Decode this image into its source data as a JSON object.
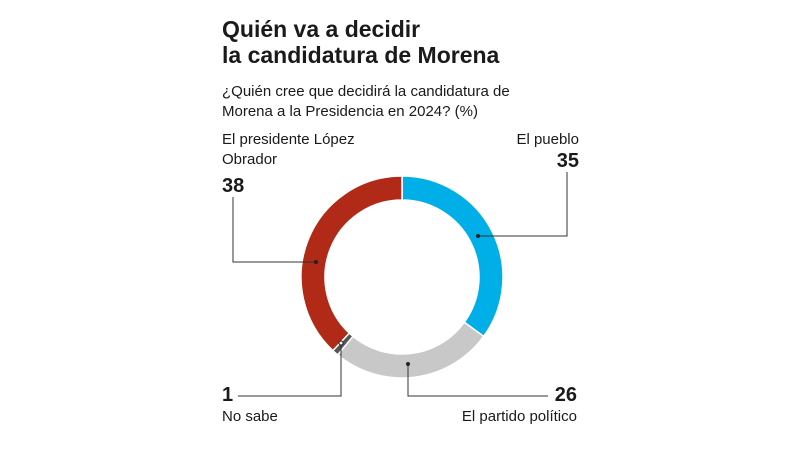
{
  "title_line1": "Quién va a decidir",
  "title_line2": "la candidatura de Morena",
  "subtitle_line1": "¿Quién cree que decidirá la candidatura de",
  "subtitle_line2": "Morena a la Presidencia en 2024? (%)",
  "chart_data": {
    "type": "pie",
    "donut": true,
    "title": "Quién va a decidir la candidatura de Morena",
    "subtitle": "¿Quién cree que decidirá la candidatura de Morena a la Presidencia en 2024? (%)",
    "unit": "%",
    "slices": [
      {
        "label": "El pueblo",
        "value": 35,
        "color": "#00aee8"
      },
      {
        "label": "El partido político",
        "value": 26,
        "color": "#c8c8c8"
      },
      {
        "label": "No sabe",
        "value": 1,
        "color": "#555555"
      },
      {
        "label": "El presidente López Obrador",
        "value": 38,
        "color": "#b02a17"
      }
    ],
    "start": "top",
    "direction": "clockwise"
  },
  "labels": {
    "pueblo": "El pueblo",
    "partido": "El partido político",
    "nosabe": "No sabe",
    "amlo_line1": "El presidente López",
    "amlo_line2": "Obrador"
  },
  "values": {
    "pueblo": "35",
    "partido": "26",
    "nosabe": "1",
    "amlo": "38"
  }
}
